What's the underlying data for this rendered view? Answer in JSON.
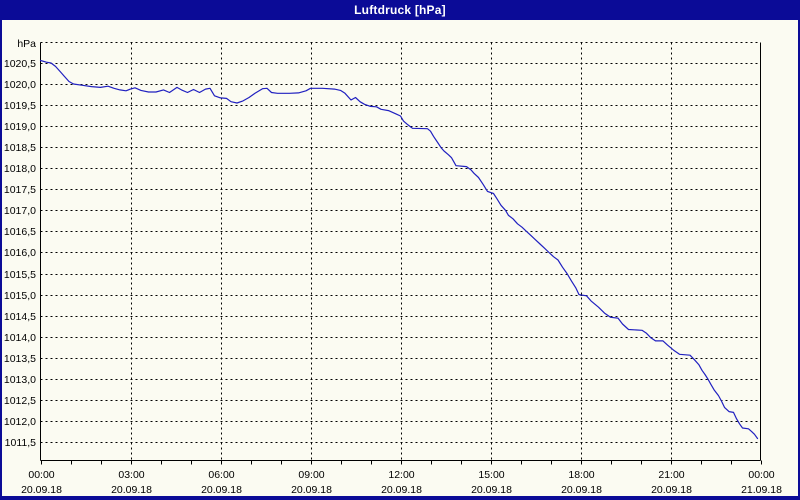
{
  "window": {
    "title": "Luftdruck [hPa]"
  },
  "colors": {
    "titlebar": "#0b0b97",
    "window_border": "#0b0b97",
    "title_text": "#ffffff",
    "background": "#fbfbf2",
    "grid": "#000000",
    "axis": "#000000",
    "label_text": "#000000",
    "line": "#2020c0"
  },
  "y_axis": {
    "unit": "hPa",
    "min": 1011.0,
    "max": 1021.0,
    "tick_step": 0.5,
    "first_tick_value": 1020.5,
    "tick_labels": [
      "1020,5",
      "1020,0",
      "1019,5",
      "1019,0",
      "1018,5",
      "1018,0",
      "1017,5",
      "1017,0",
      "1016,5",
      "1016,0",
      "1015,5",
      "1015,0",
      "1014,5",
      "1014,0",
      "1013,5",
      "1013,0",
      "1012,5",
      "1012,0",
      "1011,5"
    ]
  },
  "x_axis": {
    "hours_total": 24,
    "minor_tick_every_hours": 1,
    "label_every_hours": 3,
    "labels": [
      {
        "time": "00:00",
        "date": "20.09.18"
      },
      {
        "time": "03:00",
        "date": "20.09.18"
      },
      {
        "time": "06:00",
        "date": "20.09.18"
      },
      {
        "time": "09:00",
        "date": "20.09.18"
      },
      {
        "time": "12:00",
        "date": "20.09.18"
      },
      {
        "time": "15:00",
        "date": "20.09.18"
      },
      {
        "time": "18:00",
        "date": "20.09.18"
      },
      {
        "time": "21:00",
        "date": "20.09.18"
      },
      {
        "time": "00:00",
        "date": "21.09.18"
      }
    ]
  },
  "chart_data": {
    "type": "line",
    "title": "Luftdruck [hPa]",
    "xlabel": "",
    "ylabel": "hPa",
    "x_unit": "hours since 00:00 20.09.18",
    "ylim": [
      1011.0,
      1021.0
    ],
    "x_range_hours": [
      0,
      24
    ],
    "x_tick_hours": [
      0,
      3,
      6,
      9,
      12,
      15,
      18,
      21,
      24
    ],
    "grid": true,
    "legend": false,
    "series_name": "Luftdruck",
    "points": [
      [
        0.0,
        1020.56
      ],
      [
        0.2,
        1020.52
      ],
      [
        0.35,
        1020.5
      ],
      [
        0.5,
        1020.42
      ],
      [
        0.65,
        1020.3
      ],
      [
        0.8,
        1020.18
      ],
      [
        0.95,
        1020.06
      ],
      [
        1.1,
        1020.0
      ],
      [
        1.4,
        1019.97
      ],
      [
        1.7,
        1019.94
      ],
      [
        2.0,
        1019.92
      ],
      [
        2.25,
        1019.95
      ],
      [
        2.45,
        1019.9
      ],
      [
        2.65,
        1019.86
      ],
      [
        2.85,
        1019.84
      ],
      [
        3.0,
        1019.88
      ],
      [
        3.15,
        1019.91
      ],
      [
        3.35,
        1019.85
      ],
      [
        3.6,
        1019.81
      ],
      [
        3.85,
        1019.81
      ],
      [
        4.1,
        1019.86
      ],
      [
        4.3,
        1019.8
      ],
      [
        4.55,
        1019.92
      ],
      [
        4.7,
        1019.86
      ],
      [
        4.9,
        1019.8
      ],
      [
        5.1,
        1019.87
      ],
      [
        5.3,
        1019.8
      ],
      [
        5.5,
        1019.88
      ],
      [
        5.65,
        1019.9
      ],
      [
        5.8,
        1019.72
      ],
      [
        6.0,
        1019.67
      ],
      [
        6.2,
        1019.66
      ],
      [
        6.35,
        1019.58
      ],
      [
        6.55,
        1019.55
      ],
      [
        6.75,
        1019.6
      ],
      [
        6.95,
        1019.68
      ],
      [
        7.15,
        1019.78
      ],
      [
        7.4,
        1019.89
      ],
      [
        7.55,
        1019.9
      ],
      [
        7.7,
        1019.8
      ],
      [
        7.9,
        1019.78
      ],
      [
        8.3,
        1019.78
      ],
      [
        8.6,
        1019.79
      ],
      [
        8.85,
        1019.84
      ],
      [
        9.0,
        1019.9
      ],
      [
        9.4,
        1019.9
      ],
      [
        9.8,
        1019.88
      ],
      [
        10.0,
        1019.85
      ],
      [
        10.15,
        1019.78
      ],
      [
        10.35,
        1019.62
      ],
      [
        10.5,
        1019.68
      ],
      [
        10.65,
        1019.58
      ],
      [
        10.8,
        1019.52
      ],
      [
        11.0,
        1019.47
      ],
      [
        11.2,
        1019.46
      ],
      [
        11.35,
        1019.4
      ],
      [
        11.6,
        1019.37
      ],
      [
        11.85,
        1019.29
      ],
      [
        12.0,
        1019.24
      ],
      [
        12.1,
        1019.12
      ],
      [
        12.25,
        1019.03
      ],
      [
        12.4,
        1018.95
      ],
      [
        12.9,
        1018.94
      ],
      [
        13.0,
        1018.88
      ],
      [
        13.1,
        1018.76
      ],
      [
        13.25,
        1018.6
      ],
      [
        13.35,
        1018.49
      ],
      [
        13.45,
        1018.41
      ],
      [
        13.6,
        1018.32
      ],
      [
        13.7,
        1018.25
      ],
      [
        13.85,
        1018.06
      ],
      [
        14.2,
        1018.04
      ],
      [
        14.35,
        1017.96
      ],
      [
        14.45,
        1017.88
      ],
      [
        14.6,
        1017.78
      ],
      [
        14.75,
        1017.62
      ],
      [
        14.9,
        1017.45
      ],
      [
        15.1,
        1017.4
      ],
      [
        15.2,
        1017.29
      ],
      [
        15.35,
        1017.12
      ],
      [
        15.5,
        1017.0
      ],
      [
        15.6,
        1016.88
      ],
      [
        15.75,
        1016.8
      ],
      [
        15.9,
        1016.68
      ],
      [
        16.05,
        1016.6
      ],
      [
        16.2,
        1016.5
      ],
      [
        16.35,
        1016.4
      ],
      [
        16.5,
        1016.3
      ],
      [
        16.65,
        1016.2
      ],
      [
        16.8,
        1016.1
      ],
      [
        16.95,
        1016.0
      ],
      [
        17.1,
        1015.9
      ],
      [
        17.25,
        1015.82
      ],
      [
        17.4,
        1015.65
      ],
      [
        17.55,
        1015.5
      ],
      [
        17.7,
        1015.32
      ],
      [
        17.85,
        1015.15
      ],
      [
        17.95,
        1015.0
      ],
      [
        18.2,
        1014.97
      ],
      [
        18.35,
        1014.85
      ],
      [
        18.6,
        1014.7
      ],
      [
        18.8,
        1014.56
      ],
      [
        19.0,
        1014.46
      ],
      [
        19.25,
        1014.44
      ],
      [
        19.4,
        1014.3
      ],
      [
        19.6,
        1014.17
      ],
      [
        20.05,
        1014.15
      ],
      [
        20.2,
        1014.08
      ],
      [
        20.35,
        1013.97
      ],
      [
        20.5,
        1013.9
      ],
      [
        20.75,
        1013.9
      ],
      [
        20.9,
        1013.8
      ],
      [
        21.1,
        1013.68
      ],
      [
        21.3,
        1013.58
      ],
      [
        21.65,
        1013.56
      ],
      [
        21.8,
        1013.45
      ],
      [
        21.95,
        1013.33
      ],
      [
        22.05,
        1013.2
      ],
      [
        22.15,
        1013.1
      ],
      [
        22.25,
        1012.99
      ],
      [
        22.35,
        1012.86
      ],
      [
        22.45,
        1012.74
      ],
      [
        22.6,
        1012.6
      ],
      [
        22.7,
        1012.47
      ],
      [
        22.8,
        1012.32
      ],
      [
        22.95,
        1012.22
      ],
      [
        23.1,
        1012.2
      ],
      [
        23.2,
        1012.05
      ],
      [
        23.3,
        1011.93
      ],
      [
        23.4,
        1011.83
      ],
      [
        23.6,
        1011.81
      ],
      [
        23.7,
        1011.75
      ],
      [
        23.8,
        1011.68
      ],
      [
        23.9,
        1011.58
      ]
    ]
  }
}
